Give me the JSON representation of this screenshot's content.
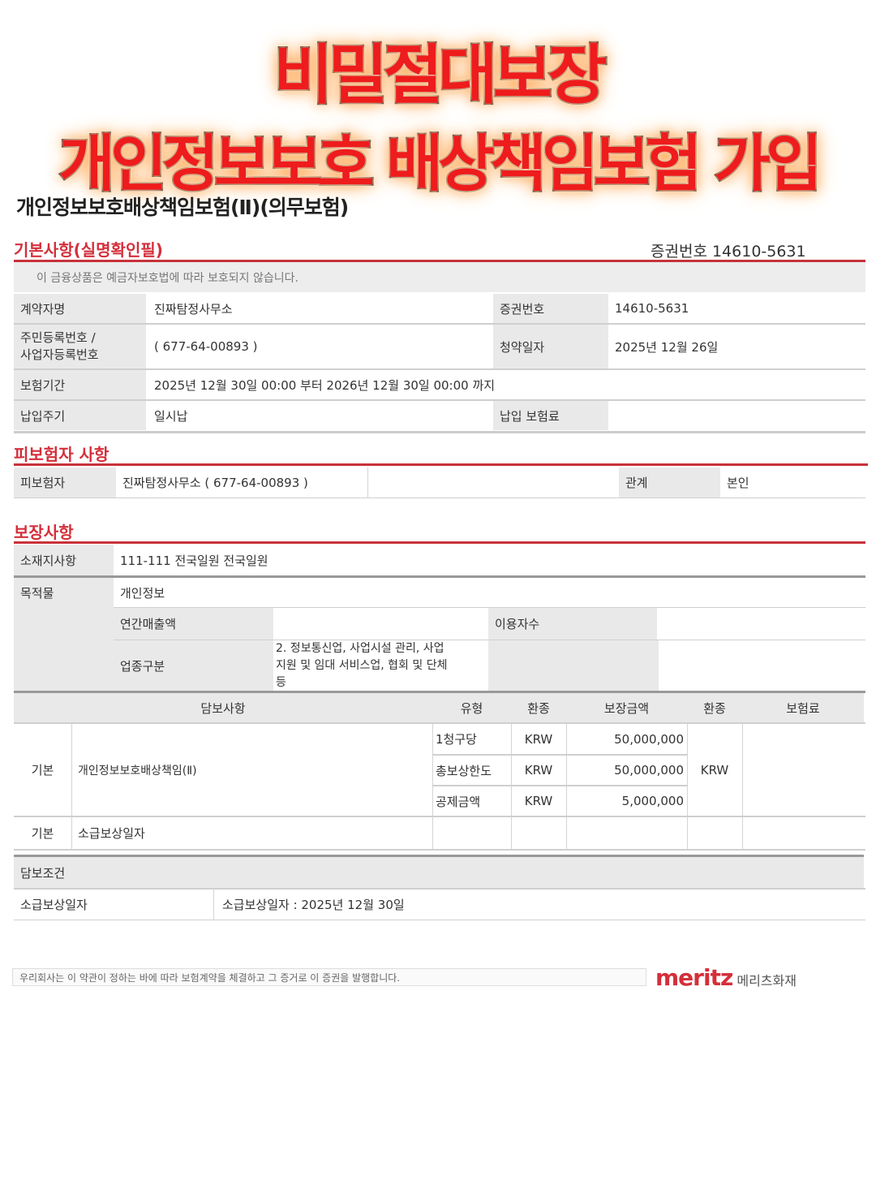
{
  "banner": {
    "line1": "비밀절대보장",
    "line2": "개인정보보호 배상책임보험 가입"
  },
  "doc_title": "개인정보보호배상책임보험(Ⅱ)(의무보험)",
  "basic": {
    "section_title": "기본사항(실명확인필)",
    "cert_label": "증권번호 14610-5631",
    "notice": "이 금융상품은 예금자보호법에 따라 보호되지 않습니다.",
    "contractor_label": "계약자명",
    "contractor": "진짜탐정사무소",
    "cert_no_label": "증권번호",
    "cert_no": "14610-5631",
    "reg_label_1": "주민등록번호 /",
    "reg_label_2": "사업자등록번호",
    "reg_no": "( 677-64-00893 )",
    "apply_label": "청약일자",
    "apply_date": "2025년 12월 26일",
    "period_label": "보험기간",
    "period": "2025년 12월 30일 00:00 부터 2026년 12월 30일 00:00 까지",
    "pay_cycle_label": "납입주기",
    "pay_cycle": "일시납",
    "premium_label": "납입 보험료"
  },
  "insured": {
    "section_title": "피보험자 사항",
    "label": "피보험자",
    "value": "진짜탐정사무소 ( 677-64-00893 )",
    "relation_label": "관계",
    "relation": "본인"
  },
  "coverage": {
    "section_title": "보장사항",
    "location_label": "소재지사항",
    "location": "111-111 전국일원 전국일원",
    "object_label": "목적물",
    "object": "개인정보",
    "revenue_label": "연간매출액",
    "users_label": "이용자수",
    "industry_label": "업종구분",
    "industry_1": "2. 정보통신업, 사업시설 관리, 사업",
    "industry_2": "지원 및 임대 서비스업, 협회 및 단체",
    "industry_3": "등",
    "headers": [
      "담보사항",
      "유형",
      "환종",
      "보장금액",
      "환종",
      "보험료"
    ],
    "main_kind": "기본",
    "main_name": "개인정보보호배상책임(Ⅱ)",
    "rows": [
      {
        "type": "1청구당",
        "cur": "KRW",
        "amount": "50,000,000"
      },
      {
        "type": "총보상한도",
        "cur": "KRW",
        "amount": "50,000,000"
      },
      {
        "type": "공제금액",
        "cur": "KRW",
        "amount": "5,000,000"
      }
    ],
    "premium_cur": "KRW",
    "retro_kind": "기본",
    "retro_name": "소급보상일자"
  },
  "conditions": {
    "title": "담보조건",
    "label": "소급보상일자",
    "value": "소급보상일자 : 2025년 12월 30일"
  },
  "footer": {
    "statement": "우리회사는 이 약관이 정하는 바에 따라 보험계약을 체결하고 그 증거로 이 증권을 발행합니다.",
    "logo_en": "meritz",
    "logo_ko": "메리츠화재"
  },
  "colors": {
    "accent": "#d42f3a",
    "banner": "#ee1c1c"
  }
}
